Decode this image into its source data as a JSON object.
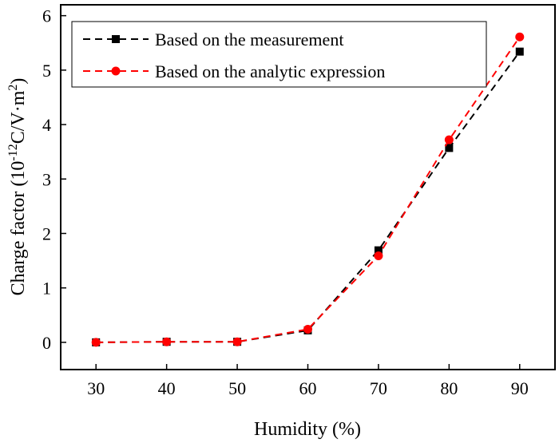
{
  "chart_data": {
    "type": "line",
    "xlabel": "Humidity (%)",
    "ylabel_main": "Charge factor (10",
    "ylabel_exp": "-12",
    "ylabel_unit": "C/V·m",
    "ylabel_unit_exp": "2",
    "ylabel_close": ")",
    "x": [
      30,
      40,
      50,
      60,
      70,
      80,
      90
    ],
    "xlim": [
      25,
      95
    ],
    "ylim": [
      -0.5,
      6.2
    ],
    "xticks": [
      30,
      40,
      50,
      60,
      70,
      80,
      90
    ],
    "yticks": [
      0,
      1,
      2,
      3,
      4,
      5,
      6
    ],
    "grid": false,
    "legend_position": "top-left",
    "series": [
      {
        "name": "Based on the measurement",
        "values": [
          0.0,
          0.01,
          0.01,
          0.22,
          1.69,
          3.57,
          5.34
        ],
        "color": "#000000",
        "marker": "square",
        "line_style": "dashed"
      },
      {
        "name": "Based on the analytic expression",
        "values": [
          0.0,
          0.01,
          0.01,
          0.24,
          1.59,
          3.72,
          5.61
        ],
        "color": "#ff0000",
        "marker": "circle",
        "line_style": "dashed"
      }
    ]
  }
}
